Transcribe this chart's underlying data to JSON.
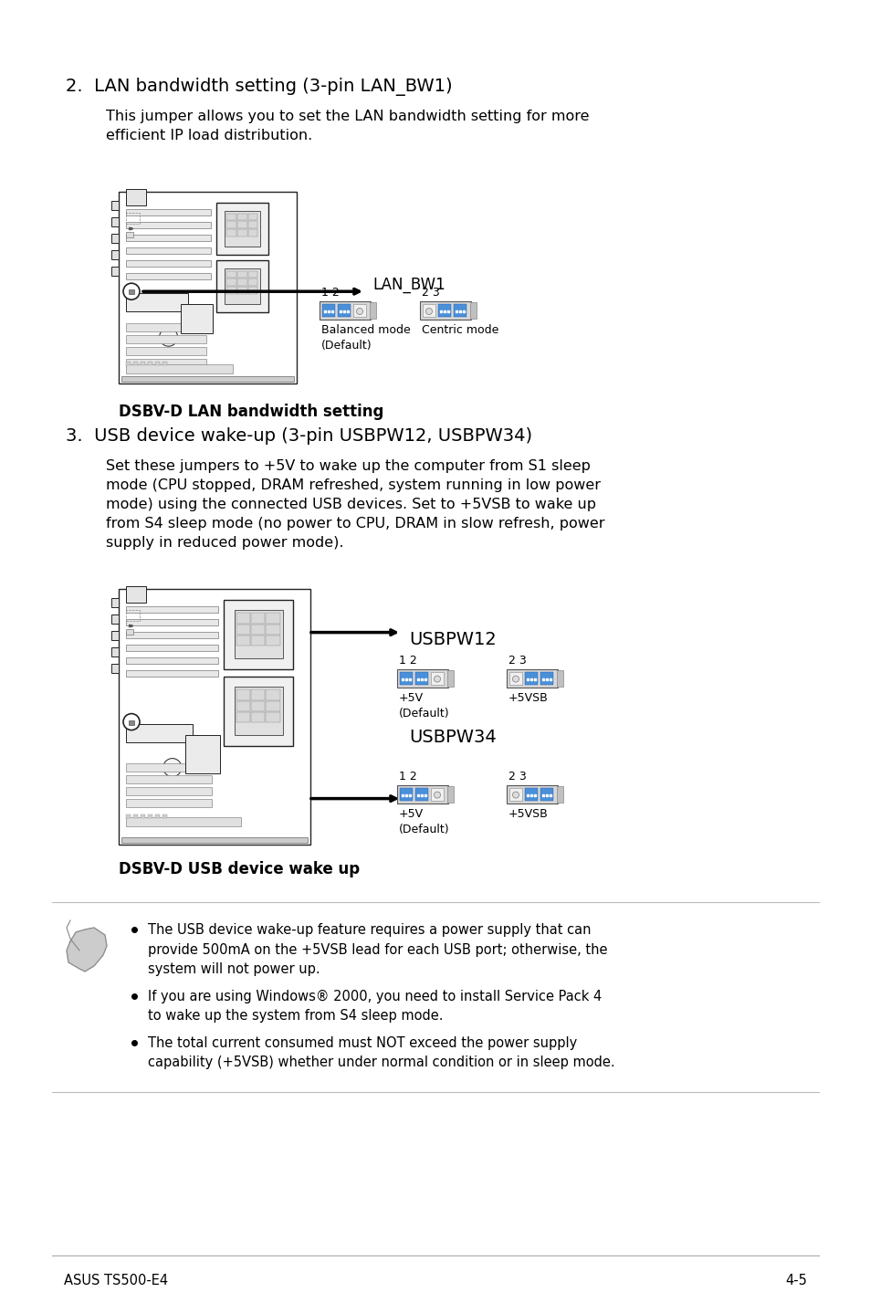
{
  "bg_color": "#ffffff",
  "blue_color": "#4a90d9",
  "black": "#000000",
  "gray_line": "#bbbbbb",
  "section2_heading": "2.  LAN bandwidth setting (3-pin LAN_BW1)",
  "section2_body_lines": [
    "This jumper allows you to set the LAN bandwidth setting for more",
    "efficient IP load distribution."
  ],
  "section2_caption": "DSBV-D LAN bandwidth setting",
  "section3_heading": "3.  USB device wake-up (3-pin USBPW12, USBPW34)",
  "section3_body_lines": [
    "Set these jumpers to +5V to wake up the computer from S1 sleep",
    "mode (CPU stopped, DRAM refreshed, system running in low power",
    "mode) using the connected USB devices. Set to +5VSB to wake up",
    "from S4 sleep mode (no power to CPU, DRAM in slow refresh, power",
    "supply in reduced power mode)."
  ],
  "section3_caption": "DSBV-D USB device wake up",
  "footer_left": "ASUS TS500-E4",
  "footer_right": "4-5",
  "note_bullets": [
    "The USB device wake-up feature requires a power supply that can\nprovide 500mA on the +5VSB lead for each USB port; otherwise, the\nsystem will not power up.",
    "If you are using Windows® 2000, you need to install Service Pack 4\nto wake up the system from S4 sleep mode.",
    "The total current consumed must NOT exceed the power supply\ncapability (+5VSB) whether under normal condition or in sleep mode."
  ],
  "lan_bw1_label": "LAN_BW1",
  "balanced_label": "Balanced mode\n(Default)",
  "centric_label": "Centric mode",
  "usbpw12_label": "USBPW12",
  "usbpw34_label": "USBPW34",
  "plus5v_label": "+5V\n(Default)",
  "plus5vsb_label": "+5VSB",
  "pin12_label": "1 2",
  "pin23_label": "2 3"
}
